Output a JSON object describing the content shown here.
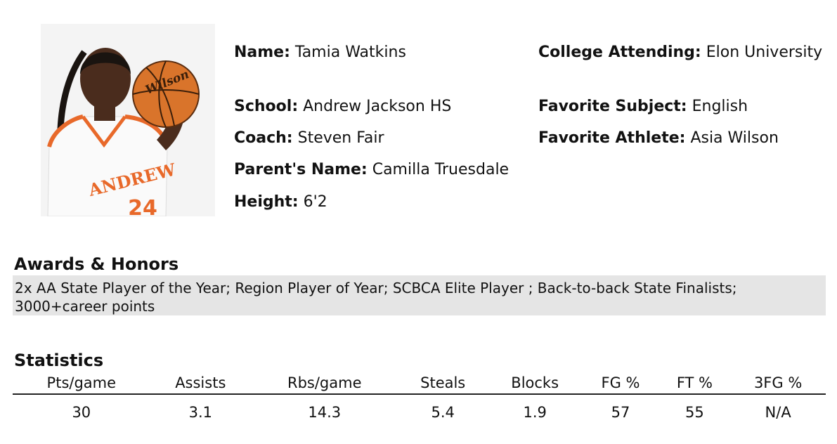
{
  "player": {
    "name_label": "Name:",
    "name": "Tamia Watkins",
    "school_label": "School:",
    "school": "Andrew Jackson HS",
    "coach_label": "Coach:",
    "coach": "Steven Fair",
    "parent_label": "Parent's Name:",
    "parent": "Camilla Truesdale",
    "height_label": "Height:",
    "height": "6'2",
    "college_label": "College Attending:",
    "college": "Elon University",
    "subject_label": "Favorite Subject:",
    "subject": "English",
    "athlete_label": "Favorite Athlete:",
    "athlete": "Asia Wilson"
  },
  "photo": {
    "jersey_text": "ANDREW",
    "jersey_number": "24",
    "ball_text": "Wilson"
  },
  "awards": {
    "title": "Awards & Honors",
    "line1": "2x AA State Player of the Year; Region Player of Year; SCBCA Elite Player ; Back-to-back State Finalists;",
    "line2": "3000+career points"
  },
  "statistics": {
    "title": "Statistics",
    "headers": [
      "Pts/game",
      "Assists",
      "Rbs/game",
      "Steals",
      "Blocks",
      "FG %",
      "FT %",
      "3FG %"
    ],
    "values": [
      "30",
      "3.1",
      "14.3",
      "5.4",
      "1.9",
      "57",
      "55",
      "N/A"
    ]
  },
  "colors": {
    "jersey_orange": "#e8692a",
    "awards_background": "#e5e5e5"
  }
}
